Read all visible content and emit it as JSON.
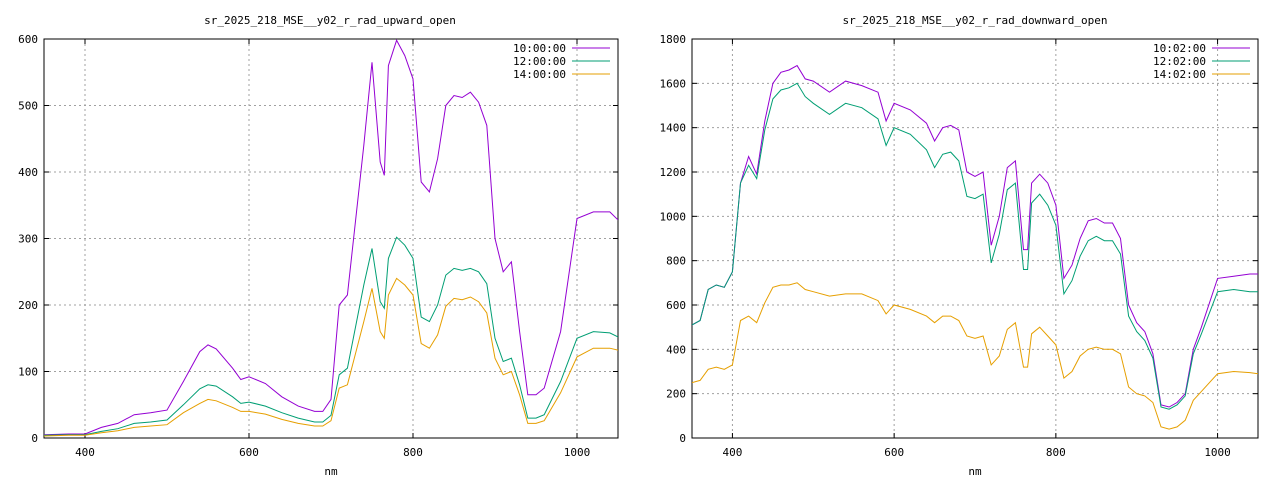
{
  "chart_data": [
    {
      "type": "line",
      "title": "sr_2025_218_MSE__y02_r_rad_upward_open",
      "xlabel": "nm",
      "ylabel": "",
      "xlim": [
        350,
        1050
      ],
      "ylim": [
        0,
        600
      ],
      "xticks": [
        400,
        600,
        800,
        1000
      ],
      "yticks": [
        0,
        100,
        200,
        300,
        400,
        500,
        600
      ],
      "grid": true,
      "legend": "top-right",
      "series": [
        {
          "name": "10:00:00",
          "color": "#9400d3",
          "x": [
            350,
            380,
            400,
            420,
            440,
            460,
            480,
            500,
            520,
            540,
            550,
            560,
            580,
            590,
            600,
            620,
            640,
            660,
            680,
            690,
            700,
            710,
            720,
            740,
            750,
            760,
            765,
            770,
            780,
            790,
            800,
            810,
            820,
            830,
            840,
            850,
            860,
            870,
            880,
            890,
            900,
            910,
            920,
            930,
            940,
            950,
            960,
            980,
            1000,
            1020,
            1040,
            1050
          ],
          "y": [
            5,
            6,
            6,
            16,
            22,
            35,
            38,
            42,
            85,
            130,
            140,
            134,
            105,
            88,
            92,
            82,
            62,
            48,
            40,
            40,
            58,
            200,
            215,
            440,
            565,
            415,
            395,
            560,
            598,
            575,
            540,
            385,
            370,
            420,
            500,
            515,
            512,
            520,
            505,
            470,
            300,
            250,
            265,
            160,
            65,
            65,
            75,
            160,
            330,
            340,
            340,
            328
          ]
        },
        {
          "name": "12:00:00",
          "color": "#009e73",
          "x": [
            350,
            380,
            400,
            420,
            440,
            460,
            480,
            500,
            520,
            540,
            550,
            560,
            580,
            590,
            600,
            620,
            640,
            660,
            680,
            690,
            700,
            710,
            720,
            740,
            750,
            760,
            765,
            770,
            780,
            790,
            800,
            810,
            820,
            830,
            840,
            850,
            860,
            870,
            880,
            890,
            900,
            910,
            920,
            930,
            940,
            950,
            960,
            980,
            1000,
            1020,
            1040,
            1050
          ],
          "y": [
            4,
            5,
            5,
            10,
            14,
            22,
            24,
            27,
            50,
            74,
            80,
            78,
            62,
            52,
            54,
            48,
            38,
            30,
            24,
            24,
            34,
            95,
            105,
            230,
            285,
            205,
            195,
            270,
            302,
            290,
            270,
            182,
            175,
            200,
            245,
            255,
            252,
            255,
            250,
            232,
            150,
            115,
            120,
            80,
            30,
            30,
            35,
            85,
            150,
            160,
            158,
            152
          ]
        },
        {
          "name": "14:00:00",
          "color": "#e69f00",
          "x": [
            350,
            380,
            400,
            420,
            440,
            460,
            480,
            500,
            520,
            540,
            550,
            560,
            580,
            590,
            600,
            620,
            640,
            660,
            680,
            690,
            700,
            710,
            720,
            740,
            750,
            760,
            765,
            770,
            780,
            790,
            800,
            810,
            820,
            830,
            840,
            850,
            860,
            870,
            880,
            890,
            900,
            910,
            920,
            930,
            940,
            950,
            960,
            980,
            1000,
            1020,
            1040,
            1050
          ],
          "y": [
            3,
            4,
            4,
            8,
            11,
            16,
            18,
            20,
            38,
            52,
            58,
            56,
            46,
            40,
            40,
            36,
            28,
            22,
            18,
            18,
            26,
            75,
            80,
            175,
            225,
            160,
            150,
            215,
            240,
            230,
            215,
            142,
            135,
            155,
            198,
            210,
            208,
            212,
            205,
            188,
            120,
            95,
            100,
            65,
            22,
            22,
            26,
            68,
            122,
            135,
            135,
            132
          ]
        }
      ]
    },
    {
      "type": "line",
      "title": "sr_2025_218_MSE__y02_r_rad_downward_open",
      "xlabel": "nm",
      "ylabel": "",
      "xlim": [
        350,
        1050
      ],
      "ylim": [
        0,
        1800
      ],
      "xticks": [
        400,
        600,
        800,
        1000
      ],
      "yticks": [
        0,
        200,
        400,
        600,
        800,
        1000,
        1200,
        1400,
        1600,
        1800
      ],
      "grid": true,
      "legend": "top-right",
      "series": [
        {
          "name": "10:02:00",
          "color": "#9400d3",
          "x": [
            350,
            360,
            370,
            380,
            390,
            400,
            410,
            420,
            430,
            440,
            450,
            460,
            470,
            480,
            490,
            500,
            520,
            540,
            560,
            580,
            590,
            600,
            620,
            640,
            650,
            660,
            670,
            680,
            690,
            700,
            710,
            720,
            730,
            740,
            750,
            760,
            765,
            770,
            780,
            790,
            800,
            810,
            820,
            830,
            840,
            850,
            860,
            870,
            880,
            890,
            900,
            910,
            920,
            930,
            940,
            950,
            960,
            970,
            980,
            1000,
            1020,
            1040,
            1050
          ],
          "y": [
            510,
            530,
            670,
            690,
            680,
            750,
            1150,
            1270,
            1190,
            1430,
            1600,
            1650,
            1660,
            1680,
            1620,
            1610,
            1560,
            1610,
            1590,
            1560,
            1430,
            1510,
            1480,
            1420,
            1340,
            1400,
            1410,
            1390,
            1200,
            1180,
            1200,
            870,
            1000,
            1220,
            1250,
            850,
            850,
            1150,
            1190,
            1150,
            1050,
            720,
            780,
            900,
            980,
            990,
            970,
            970,
            900,
            600,
            520,
            480,
            380,
            150,
            140,
            160,
            200,
            400,
            500,
            720,
            730,
            740,
            740
          ]
        },
        {
          "name": "12:02:00",
          "color": "#009e73",
          "x": [
            350,
            360,
            370,
            380,
            390,
            400,
            410,
            420,
            430,
            440,
            450,
            460,
            470,
            480,
            490,
            500,
            520,
            540,
            560,
            580,
            590,
            600,
            620,
            640,
            650,
            660,
            670,
            680,
            690,
            700,
            710,
            720,
            730,
            740,
            750,
            760,
            765,
            770,
            780,
            790,
            800,
            810,
            820,
            830,
            840,
            850,
            860,
            870,
            880,
            890,
            900,
            910,
            920,
            930,
            940,
            950,
            960,
            970,
            980,
            1000,
            1020,
            1040,
            1050
          ],
          "y": [
            510,
            530,
            670,
            690,
            680,
            750,
            1150,
            1230,
            1170,
            1390,
            1530,
            1570,
            1580,
            1600,
            1540,
            1510,
            1460,
            1510,
            1490,
            1440,
            1320,
            1400,
            1370,
            1300,
            1220,
            1280,
            1290,
            1250,
            1090,
            1080,
            1100,
            790,
            920,
            1120,
            1150,
            760,
            760,
            1060,
            1100,
            1050,
            960,
            650,
            710,
            820,
            890,
            910,
            890,
            890,
            830,
            550,
            480,
            440,
            360,
            140,
            130,
            150,
            190,
            380,
            470,
            660,
            670,
            660,
            660
          ]
        },
        {
          "name": "14:02:00",
          "color": "#e69f00",
          "x": [
            350,
            360,
            370,
            380,
            390,
            400,
            410,
            420,
            430,
            440,
            450,
            460,
            470,
            480,
            490,
            500,
            520,
            540,
            560,
            580,
            590,
            600,
            620,
            640,
            650,
            660,
            670,
            680,
            690,
            700,
            710,
            720,
            730,
            740,
            750,
            760,
            765,
            770,
            780,
            790,
            800,
            810,
            820,
            830,
            840,
            850,
            860,
            870,
            880,
            890,
            900,
            910,
            920,
            930,
            940,
            950,
            960,
            970,
            980,
            1000,
            1020,
            1040,
            1050
          ],
          "y": [
            250,
            260,
            310,
            320,
            310,
            330,
            530,
            550,
            520,
            610,
            680,
            690,
            690,
            700,
            670,
            660,
            640,
            650,
            650,
            620,
            560,
            600,
            580,
            550,
            520,
            550,
            550,
            530,
            460,
            450,
            460,
            330,
            370,
            490,
            520,
            320,
            320,
            470,
            500,
            460,
            420,
            270,
            300,
            370,
            400,
            410,
            400,
            400,
            380,
            230,
            200,
            190,
            160,
            50,
            40,
            50,
            80,
            170,
            210,
            290,
            300,
            295,
            290
          ]
        }
      ]
    }
  ]
}
